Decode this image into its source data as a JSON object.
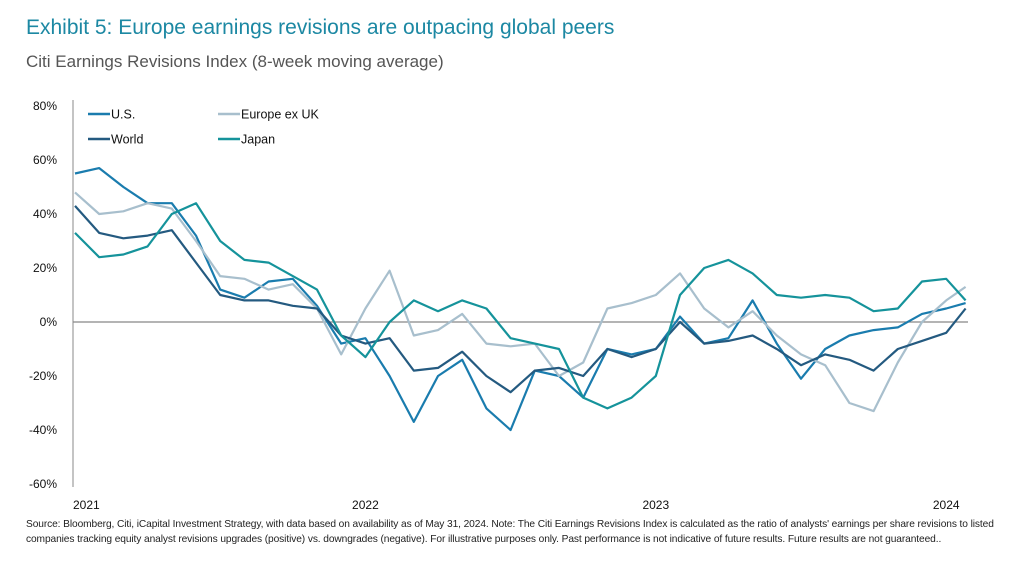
{
  "title": "Exhibit 5: Europe earnings revisions are outpacing global peers",
  "subtitle": "Citi Earnings Revisions Index (8-week moving average)",
  "footer": "Source: Bloomberg, Citi, iCapital Investment Strategy, with data based on availability as of May 31, 2024. Note: The Citi Earnings Revisions Index is calculated as the ratio of analysts' earnings per share revisions to listed companies tracking equity analyst revisions upgrades (positive) vs. downgrades (negative). For illustrative purposes only. Past performance is not indicative of future results. Future results are not guaranteed..",
  "chart_data": {
    "type": "line",
    "title": "Citi Earnings Revisions Index (8-week moving average)",
    "xlabel": "",
    "ylabel": "",
    "ylim": [
      -60,
      80
    ],
    "yticks": [
      80,
      60,
      40,
      20,
      0,
      -20,
      -40,
      -60
    ],
    "ytick_labels": [
      "80%",
      "60%",
      "40%",
      "20%",
      "0%",
      "-20%",
      "-40%",
      "-60%"
    ],
    "xtick_labels": [
      "2021",
      "2022",
      "2023",
      "2024"
    ],
    "grid": false,
    "legend": "top-left",
    "x": [
      "2021-01",
      "2021-02",
      "2021-03",
      "2021-04",
      "2021-05",
      "2021-06",
      "2021-07",
      "2021-08",
      "2021-09",
      "2021-10",
      "2021-11",
      "2021-12",
      "2022-01",
      "2022-02",
      "2022-03",
      "2022-04",
      "2022-05",
      "2022-06",
      "2022-07",
      "2022-08",
      "2022-09",
      "2022-10",
      "2022-11",
      "2022-12",
      "2023-01",
      "2023-02",
      "2023-03",
      "2023-04",
      "2023-05",
      "2023-06",
      "2023-07",
      "2023-08",
      "2023-09",
      "2023-10",
      "2023-11",
      "2023-12",
      "2024-01",
      "2024-02"
    ],
    "series": [
      {
        "name": "U.S.",
        "color": "#1a7cae",
        "values": [
          55,
          57,
          50,
          44,
          44,
          32,
          12,
          9,
          15,
          16,
          6,
          -8,
          -6,
          -20,
          -37,
          -20,
          -14,
          -32,
          -40,
          -18,
          -20,
          -28,
          -10,
          -12,
          -10,
          2,
          -8,
          -6,
          8,
          -8,
          -21,
          -10,
          -5,
          -3,
          -2,
          3,
          5,
          7
        ]
      },
      {
        "name": "Europe ex UK",
        "color": "#a8bfcd",
        "values": [
          48,
          40,
          41,
          44,
          42,
          30,
          17,
          16,
          12,
          14,
          5,
          -12,
          5,
          19,
          -5,
          -3,
          3,
          -8,
          -9,
          -8,
          -20,
          -15,
          5,
          7,
          10,
          18,
          5,
          -2,
          4,
          -5,
          -12,
          -16,
          -30,
          -33,
          -15,
          0,
          8,
          13
        ]
      },
      {
        "name": "World",
        "color": "#245a80",
        "values": [
          43,
          33,
          31,
          32,
          34,
          22,
          10,
          8,
          8,
          6,
          5,
          -5,
          -8,
          -6,
          -18,
          -17,
          -11,
          -20,
          -26,
          -18,
          -17,
          -20,
          -10,
          -13,
          -10,
          0,
          -8,
          -7,
          -5,
          -10,
          -16,
          -12,
          -14,
          -18,
          -10,
          -7,
          -4,
          5
        ]
      },
      {
        "name": "Japan",
        "color": "#15939b",
        "values": [
          33,
          24,
          25,
          28,
          40,
          44,
          30,
          23,
          22,
          17,
          12,
          -5,
          -13,
          0,
          8,
          4,
          8,
          5,
          -6,
          -8,
          -10,
          -28,
          -32,
          -28,
          -20,
          10,
          20,
          23,
          18,
          10,
          9,
          10,
          9,
          4,
          5,
          15,
          16,
          8
        ]
      }
    ]
  }
}
